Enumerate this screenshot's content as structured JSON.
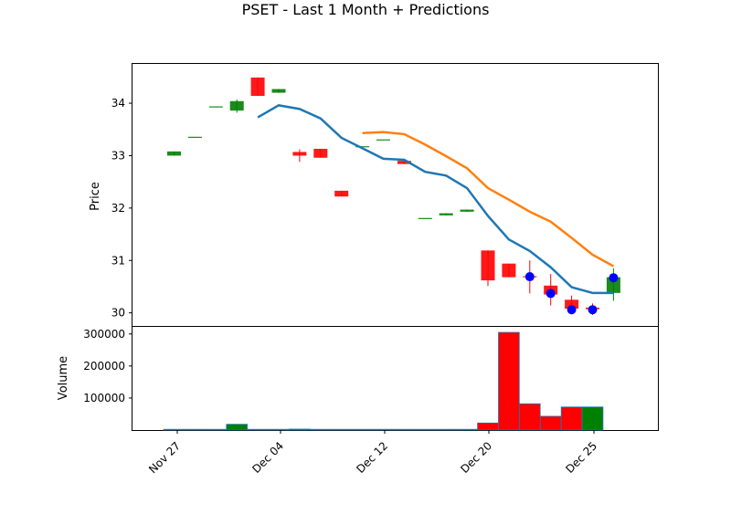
{
  "chart_data": {
    "type": "candlestick",
    "title": "PSET - Last 1 Month + Predictions",
    "price_panel": {
      "ylabel": "Price",
      "ylim": [
        29.75,
        34.75
      ],
      "yticks": [
        30,
        31,
        32,
        33,
        34
      ],
      "ytick_labels": [
        "30",
        "31",
        "32",
        "33",
        "34"
      ],
      "candles": [
        {
          "day": 0,
          "open": 33.0,
          "close": 33.08,
          "high": 33.08,
          "low": 33.0
        },
        {
          "day": 1,
          "open": 33.36,
          "close": 33.36,
          "high": 33.36,
          "low": 33.36
        },
        {
          "day": 2,
          "open": 33.94,
          "close": 33.94,
          "high": 33.94,
          "low": 33.94
        },
        {
          "day": 3,
          "open": 33.86,
          "close": 34.04,
          "high": 34.07,
          "low": 33.82
        },
        {
          "day": 4,
          "open": 34.49,
          "close": 34.14,
          "high": 34.49,
          "low": 34.14
        },
        {
          "day": 5,
          "open": 34.2,
          "close": 34.27,
          "high": 34.27,
          "low": 34.2
        },
        {
          "day": 6,
          "open": 33.07,
          "close": 33.0,
          "high": 33.12,
          "low": 32.88
        },
        {
          "day": 7,
          "open": 33.13,
          "close": 32.96,
          "high": 33.13,
          "low": 32.96
        },
        {
          "day": 8,
          "open": 32.33,
          "close": 32.22,
          "high": 32.33,
          "low": 32.22
        },
        {
          "day": 9,
          "open": 33.18,
          "close": 33.18,
          "high": 33.18,
          "low": 33.18
        },
        {
          "day": 10,
          "open": 33.31,
          "close": 33.31,
          "high": 33.31,
          "low": 33.31
        },
        {
          "day": 11,
          "open": 32.9,
          "close": 32.84,
          "high": 32.9,
          "low": 32.84
        },
        {
          "day": 12,
          "open": 31.81,
          "close": 31.81,
          "high": 31.81,
          "low": 31.81
        },
        {
          "day": 13,
          "open": 31.86,
          "close": 31.9,
          "high": 31.9,
          "low": 31.86
        },
        {
          "day": 14,
          "open": 31.93,
          "close": 31.97,
          "high": 31.97,
          "low": 31.93
        },
        {
          "day": 15,
          "open": 31.19,
          "close": 30.62,
          "high": 31.19,
          "low": 30.51
        },
        {
          "day": 16,
          "open": 30.94,
          "close": 30.68,
          "high": 30.94,
          "low": 30.68
        },
        {
          "day": 17,
          "open": 30.7,
          "close": 30.68,
          "high": 31.0,
          "low": 30.37
        },
        {
          "day": 18,
          "open": 30.52,
          "close": 30.35,
          "high": 30.74,
          "low": 30.14
        },
        {
          "day": 19,
          "open": 30.25,
          "close": 30.08,
          "high": 30.33,
          "low": 30.03
        },
        {
          "day": 20,
          "open": 30.1,
          "close": 30.07,
          "high": 30.18,
          "low": 29.96
        },
        {
          "day": 21,
          "open": 30.38,
          "close": 30.68,
          "high": 30.85,
          "low": 30.23
        }
      ],
      "sma_short": {
        "days": [
          4,
          5,
          6,
          7,
          8,
          9,
          10,
          11,
          12,
          13,
          14,
          15,
          16,
          17,
          18,
          19,
          20,
          21
        ],
        "values": [
          33.73,
          33.96,
          33.89,
          33.71,
          33.34,
          33.14,
          32.94,
          32.92,
          32.69,
          32.62,
          32.38,
          31.85,
          31.4,
          31.18,
          30.87,
          30.49,
          30.38,
          30.38
        ]
      },
      "sma_long": {
        "days": [
          9,
          10,
          11,
          12,
          13,
          14,
          15,
          16,
          17,
          18,
          19,
          20,
          21
        ],
        "values": [
          33.43,
          33.45,
          33.41,
          33.21,
          32.99,
          32.76,
          32.38,
          32.16,
          31.93,
          31.74,
          31.43,
          31.11,
          30.89
        ]
      },
      "prediction_points": [
        {
          "day": 17,
          "value": 30.69
        },
        {
          "day": 18,
          "value": 30.37
        },
        {
          "day": 19,
          "value": 30.06
        },
        {
          "day": 20,
          "value": 30.06
        },
        {
          "day": 21,
          "value": 30.67
        }
      ]
    },
    "volume_panel": {
      "ylabel": "Volume",
      "ylim": [
        0,
        325000
      ],
      "yticks": [
        100000,
        200000,
        300000
      ],
      "ytick_labels": [
        "100000",
        "200000",
        "300000"
      ],
      "bars": [
        {
          "day": 0,
          "volume": 1000,
          "color": "green"
        },
        {
          "day": 1,
          "volume": 500,
          "color": "red"
        },
        {
          "day": 2,
          "volume": 500,
          "color": "red"
        },
        {
          "day": 3,
          "volume": 18000,
          "color": "green"
        },
        {
          "day": 4,
          "volume": 1000,
          "color": "red"
        },
        {
          "day": 5,
          "volume": 1000,
          "color": "green"
        },
        {
          "day": 6,
          "volume": 3000,
          "color": "red"
        },
        {
          "day": 7,
          "volume": 1000,
          "color": "red"
        },
        {
          "day": 8,
          "volume": 1000,
          "color": "red"
        },
        {
          "day": 9,
          "volume": 500,
          "color": "red"
        },
        {
          "day": 10,
          "volume": 500,
          "color": "red"
        },
        {
          "day": 11,
          "volume": 1000,
          "color": "red"
        },
        {
          "day": 12,
          "volume": 500,
          "color": "red"
        },
        {
          "day": 13,
          "volume": 1000,
          "color": "green"
        },
        {
          "day": 14,
          "volume": 1000,
          "color": "green"
        },
        {
          "day": 15,
          "volume": 22000,
          "color": "red"
        },
        {
          "day": 16,
          "volume": 305000,
          "color": "red"
        },
        {
          "day": 17,
          "volume": 82000,
          "color": "red"
        },
        {
          "day": 18,
          "volume": 43000,
          "color": "red"
        },
        {
          "day": 19,
          "volume": 72000,
          "color": "red"
        },
        {
          "day": 20,
          "volume": 72000,
          "color": "green"
        },
        {
          "day": 21,
          "volume": 0,
          "color": "green"
        }
      ]
    },
    "x_axis": {
      "tick_days": [
        0,
        5,
        10,
        15,
        20
      ],
      "tick_labels": [
        "Nov 27",
        "Dec 04",
        "Dec 12",
        "Dec 20",
        "Dec 25"
      ]
    },
    "colors": {
      "up": "#008000",
      "down": "#ff0000",
      "sma_short": "#1f77b4",
      "sma_long": "#ff7f0e",
      "prediction": "#0000ff",
      "volume_edge": "#1f77b4"
    }
  }
}
